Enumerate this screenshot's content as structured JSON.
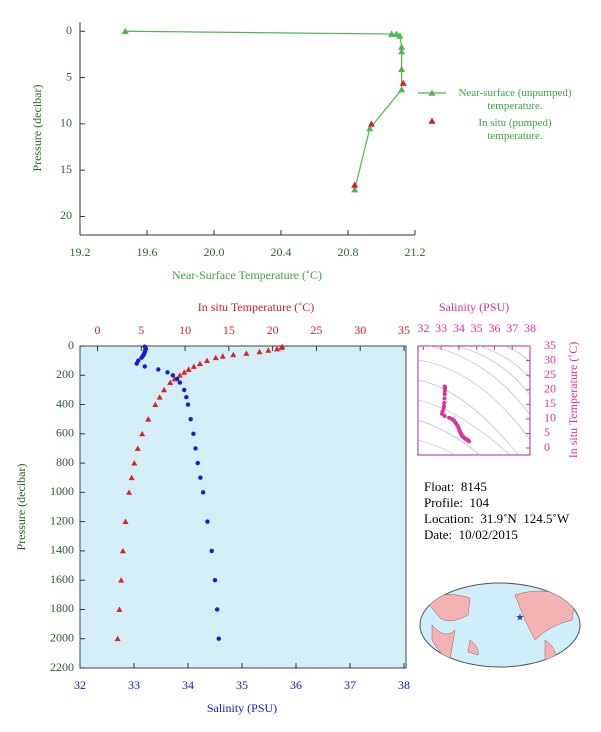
{
  "chart_data": [
    {
      "type": "line",
      "x_label": "Near-Surface Temperature (˚C)",
      "y_label": "Pressure (decibar)",
      "xlim": [
        19.2,
        21.2
      ],
      "xticks": [
        19.2,
        19.6,
        {
          "value": 20,
          "label": "20.0"
        },
        20.4,
        20.8,
        21.2
      ],
      "ylim": [
        -1,
        22
      ],
      "yticks": [
        0,
        5,
        10,
        15,
        20
      ],
      "y_reversed": true,
      "series": [
        {
          "name": "Near-surface (unpumped) temperature.",
          "color": "#4cb84c",
          "line": true,
          "x": [
            19.47,
            21.06,
            21.09,
            21.11,
            21.12,
            21.12,
            21.12,
            21.12,
            20.93,
            20.84
          ],
          "values": [
            0,
            0.3,
            0.3,
            0.5,
            1.7,
            2.2,
            4.1,
            6.3,
            10.5,
            17.1
          ]
        },
        {
          "name": "In situ (pumped) temperature.",
          "color": "#d42020",
          "line": false,
          "x": [
            21.13,
            20.94,
            20.84
          ],
          "values": [
            5.6,
            10.0,
            16.6
          ]
        }
      ]
    },
    {
      "type": "profile",
      "y_label": "Pressure (decibar)",
      "x_label": "Salinity (PSU)",
      "x2_label": "In situ Temperature (˚C)",
      "y": [
        5,
        10,
        20,
        30,
        40,
        50,
        60,
        70,
        80,
        100,
        120,
        140,
        160,
        180,
        200,
        225,
        250,
        300,
        350,
        400,
        500,
        600,
        700,
        800,
        900,
        1000,
        1200,
        1400,
        1600,
        1800,
        2000
      ],
      "ylim": [
        0,
        2200
      ],
      "yticks": [
        0,
        200,
        400,
        600,
        800,
        1000,
        1200,
        1400,
        1600,
        1800,
        2000,
        2200
      ],
      "y_reversed": true,
      "xlim": [
        32,
        38
      ],
      "xticks": [
        32,
        33,
        34,
        35,
        36,
        37,
        38
      ],
      "x2lim": [
        -2,
        35
      ],
      "x2ticks": [
        0,
        5,
        10,
        15,
        20,
        25,
        30,
        35
      ],
      "series": [
        {
          "axis": "x2",
          "color": "#e02020",
          "marker": "triangle",
          "values": [
            21.1,
            21.0,
            20.5,
            19.5,
            18.5,
            17,
            15.5,
            14.3,
            13.5,
            12.5,
            11.7,
            11.0,
            10.4,
            9.9,
            9.4,
            8.8,
            8.3,
            7.6,
            7.1,
            6.6,
            5.8,
            5.1,
            4.6,
            4.2,
            3.9,
            3.6,
            3.2,
            2.9,
            2.7,
            2.5,
            2.3
          ]
        },
        {
          "axis": "x",
          "color": "#1020d0",
          "marker": "dot",
          "values": [
            33.2,
            33.21,
            33.22,
            33.21,
            33.2,
            33.19,
            33.18,
            33.16,
            33.14,
            33.08,
            33.05,
            33.2,
            33.45,
            33.62,
            33.72,
            33.8,
            33.85,
            33.93,
            33.97,
            34.0,
            34.05,
            34.1,
            34.14,
            34.18,
            34.23,
            34.28,
            34.36,
            34.44,
            34.5,
            34.54,
            34.57
          ]
        }
      ]
    },
    {
      "type": "ts-diagram",
      "x_label": "Salinity (PSU)",
      "y_label": "In situ Temperature (˚C)",
      "color": "#e0309a",
      "xlim": [
        31.7,
        38
      ],
      "xticks": [
        32,
        33,
        34,
        35,
        36,
        37,
        38
      ],
      "ylim": [
        -2.4,
        35
      ],
      "yticks": [
        0,
        5,
        10,
        15,
        20,
        25,
        30,
        35
      ]
    }
  ],
  "info": [
    "Float:  8145",
    "Profile:  104",
    "Location:  31.9˚N  124.5˚W",
    "Date:  10/02/2015"
  ]
}
